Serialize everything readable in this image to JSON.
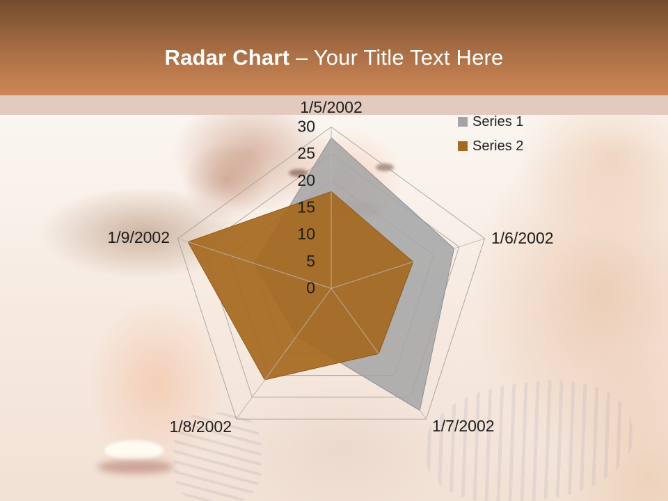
{
  "header": {
    "title_bold": "Radar Chart",
    "title_rest": " – Your Title Text Here",
    "title_color": "#ffffff",
    "gradient_top": "#734c2d",
    "gradient_mid": "#a96f45",
    "gradient_bottom": "#cf8757",
    "strip_color": "#e3cabe"
  },
  "chart_data": {
    "type": "radar",
    "title": "Radar Chart – Your Title Text Here",
    "categories": [
      "1/5/2002",
      "1/6/2002",
      "1/7/2002",
      "1/8/2002",
      "1/9/2002"
    ],
    "series": [
      {
        "name": "Series 1",
        "color": "#a3a4a6",
        "stroke": "#8f9093",
        "opacity": 0.85,
        "values": [
          28,
          24,
          28,
          11,
          15
        ]
      },
      {
        "name": "Series 2",
        "color": "#a5681f",
        "stroke": "#8f5a17",
        "opacity": 0.92,
        "values": [
          18,
          16,
          15,
          21,
          28
        ]
      }
    ],
    "axis": {
      "min": 0,
      "max": 30,
      "step": 5,
      "tick_labels": [
        "0",
        "5",
        "10",
        "15",
        "20",
        "25",
        "30"
      ]
    },
    "grid": true,
    "grid_color": "#a19c96",
    "spoke_color": "#b8b5b1",
    "label_color": "#1d1d1d",
    "legend_position": "top-right"
  }
}
